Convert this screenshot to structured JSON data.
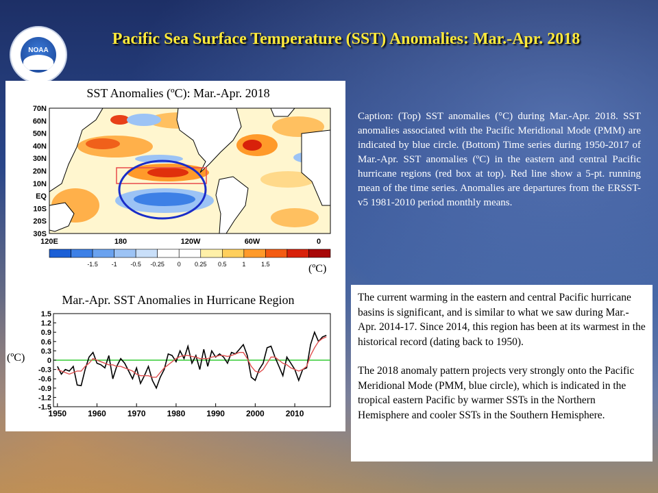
{
  "slide": {
    "title": "Pacific Sea Surface Temperature (SST) Anomalies: Mar.-Apr. 2018",
    "logo": {
      "icon": "noaa-logo-icon",
      "text": "NOAA"
    },
    "caption": "Caption: (Top) SST anomalies (°C) during Mar.-Apr. 2018. SST anomalies associated with the Pacific Meridional Mode (PMM) are indicated by blue circle. (Bottom) Time series during 1950-2017 of Mar.-Apr. SST anomalies (ºC) in the eastern and central Pacific hurricane regions (red box at top). Red line show a 5-pt. running mean of the time series. Anomalies are departures from the ERSST-v5 1981-2010 period monthly means.",
    "discussion": [
      "The current warming in the eastern and central Pacific hurricane basins is significant, and is similar to what we saw during Mar.-Apr. 2014-17. Since 2014, this region has been at its warmest in the historical record (dating back to 1950).",
      "The 2018 anomaly pattern projects very strongly onto the Pacific Meridional Mode (PMM, blue circle), which is indicated in the tropical eastern Pacific by warmer SSTs in the Northern Hemisphere and cooler SSTs in the Southern Hemisphere."
    ]
  },
  "map": {
    "title": "SST Anomalies (ºC): Mar.-Apr.  2018",
    "unit": "(ºC)",
    "lat_labels": [
      "70N",
      "60N",
      "50N",
      "40N",
      "30N",
      "20N",
      "10N",
      "EQ",
      "10S",
      "20S",
      "30S"
    ],
    "lon_labels": [
      "120E",
      "180",
      "120W",
      "60W",
      "0"
    ],
    "colorbar": {
      "labels": [
        "-1.5",
        "-1",
        "-0.5",
        "-0.25",
        "0",
        "0.25",
        "0.5",
        "1",
        "1.5"
      ],
      "colors": [
        "#1b5fd6",
        "#3d80e6",
        "#6aa2ef",
        "#9cc3f5",
        "#c9dff9",
        "#ffffff",
        "#ffffff",
        "#fff0a8",
        "#ffcf5c",
        "#ff9a2a",
        "#f45b12",
        "#d8210a",
        "#a80808"
      ]
    },
    "colors": {
      "land": "#ffffff",
      "hurricane_box": "#e84a4a",
      "pmm_circle": "#1a2dc8"
    }
  },
  "chart_data": {
    "type": "line",
    "title": "Mar.-Apr.  SST Anomalies  in Hurricane Region",
    "ylabel": "(ºC)",
    "xlabel": "",
    "xlim": [
      1949,
      2019
    ],
    "ylim": [
      -1.5,
      1.5
    ],
    "xticks": [
      "1950",
      "1960",
      "1970",
      "1980",
      "1990",
      "2000",
      "2010"
    ],
    "yticks": [
      "-1.5",
      "-1.2",
      "-0.9",
      "-0.6",
      "-0.3",
      "0",
      "0.3",
      "0.6",
      "0.9",
      "1.2",
      "1.5"
    ],
    "grid": false,
    "x": [
      1950,
      1951,
      1952,
      1953,
      1954,
      1955,
      1956,
      1957,
      1958,
      1959,
      1960,
      1961,
      1962,
      1963,
      1964,
      1965,
      1966,
      1967,
      1968,
      1969,
      1970,
      1971,
      1972,
      1973,
      1974,
      1975,
      1976,
      1977,
      1978,
      1979,
      1980,
      1981,
      1982,
      1983,
      1984,
      1985,
      1986,
      1987,
      1988,
      1989,
      1990,
      1991,
      1992,
      1993,
      1994,
      1995,
      1996,
      1997,
      1998,
      1999,
      2000,
      2001,
      2002,
      2003,
      2004,
      2005,
      2006,
      2007,
      2008,
      2009,
      2010,
      2011,
      2012,
      2013,
      2014,
      2015,
      2016,
      2017,
      2018
    ],
    "series": [
      {
        "color": "#000000",
        "values": [
          -0.2,
          -0.45,
          -0.3,
          -0.35,
          -0.2,
          -0.8,
          -0.82,
          -0.3,
          0.1,
          0.25,
          -0.1,
          -0.15,
          -0.25,
          0.15,
          -0.6,
          -0.2,
          0.05,
          -0.1,
          -0.35,
          -0.6,
          -0.25,
          -0.75,
          -0.5,
          -0.2,
          -0.65,
          -0.9,
          -0.55,
          -0.3,
          0.2,
          0.15,
          -0.05,
          0.3,
          0.05,
          0.45,
          -0.1,
          0.15,
          -0.3,
          0.35,
          -0.2,
          0.3,
          0.1,
          0.2,
          0.1,
          -0.1,
          0.25,
          0.2,
          0.35,
          0.5,
          0.15,
          -0.55,
          -0.65,
          -0.3,
          -0.1,
          0.4,
          0.45,
          0.1,
          -0.2,
          -0.5,
          0.1,
          -0.1,
          -0.3,
          -0.65,
          -0.3,
          -0.25,
          0.5,
          0.9,
          0.6,
          0.75,
          0.8
        ]
      },
      {
        "color": "#e05050",
        "values": [
          -0.3,
          -0.35,
          -0.4,
          -0.45,
          -0.4,
          -0.35,
          -0.35,
          -0.2,
          -0.1,
          0.05,
          0.0,
          -0.05,
          -0.1,
          -0.15,
          -0.15,
          -0.2,
          -0.2,
          -0.25,
          -0.3,
          -0.35,
          -0.45,
          -0.5,
          -0.5,
          -0.5,
          -0.55,
          -0.55,
          -0.4,
          -0.25,
          -0.15,
          -0.05,
          0.05,
          0.12,
          0.15,
          0.15,
          0.12,
          0.1,
          0.05,
          0.05,
          0.05,
          0.1,
          0.12,
          0.15,
          0.15,
          0.12,
          0.15,
          0.2,
          0.25,
          0.25,
          0.05,
          -0.2,
          -0.35,
          -0.4,
          -0.3,
          -0.1,
          0.1,
          0.1,
          0.0,
          -0.1,
          -0.15,
          -0.25,
          -0.3,
          -0.35,
          -0.3,
          -0.2,
          0.15,
          0.4,
          0.6,
          0.7,
          0.75
        ]
      }
    ],
    "zero_line_color": "#33cc33"
  }
}
